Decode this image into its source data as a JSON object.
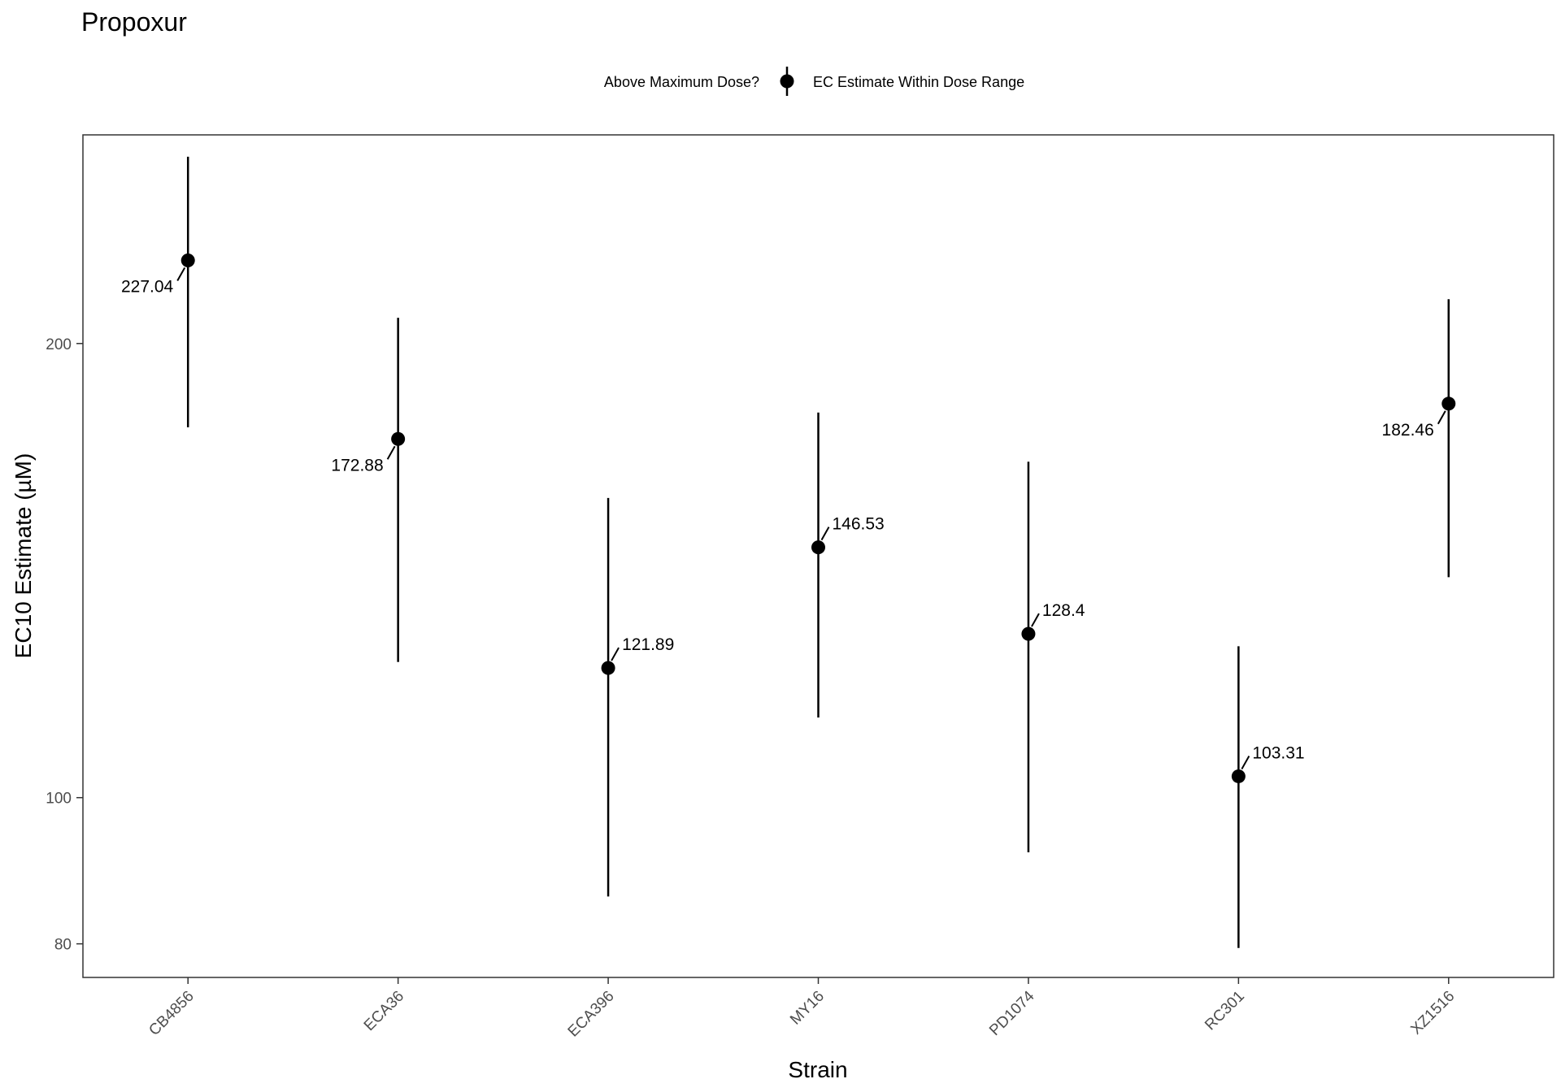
{
  "chart_data": {
    "type": "scatter",
    "title": "Propoxur",
    "xlabel": "Strain",
    "ylabel": "EC10 Estimate (µM)",
    "y_scale": "log",
    "ylim": [
      76,
      275
    ],
    "y_ticks": [
      80,
      100,
      200
    ],
    "grid": false,
    "legend": {
      "placement": "top",
      "title": "Above Maximum Dose?",
      "entries": [
        "EC Estimate Within Dose Range"
      ]
    },
    "categories": [
      "CB4856",
      "ECA36",
      "ECA396",
      "MY16",
      "PD1074",
      "RC301",
      "XZ1516"
    ],
    "series": [
      {
        "name": "EC Estimate Within Dose Range",
        "values": [
          227.04,
          172.88,
          121.89,
          146.53,
          128.4,
          103.31,
          182.46
        ],
        "labels": [
          "227.04",
          "172.88",
          "121.89",
          "146.53",
          "128.4",
          "103.31",
          "182.46"
        ],
        "lower": [
          176,
          123,
          86,
          113,
          92,
          79.5,
          140
        ],
        "upper": [
          266,
          208,
          158,
          180,
          167,
          126,
          214
        ]
      }
    ],
    "colors": {
      "point": "#000000",
      "panel_border": "#333333",
      "background": "#ffffff"
    }
  }
}
